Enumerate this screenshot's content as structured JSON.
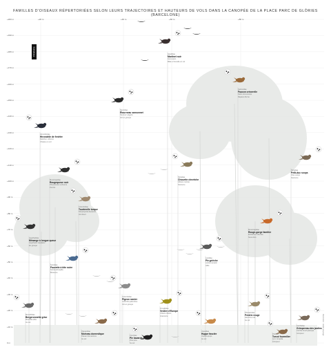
{
  "title": "FAMILLES D'OISEAUX RÉPERTORIÉES SELON LEURS TRAJECTOIRES ET HAUTEURS DE VOLS DANS LA CANOPÉE DE LA PLACE PARC DE GLÒRIES (BARCELONE)",
  "side_tag": "FRANCE",
  "altitude_ticks": [
    "+200 m",
    "+190 m",
    "+180 m",
    "+170 m",
    "+160 m",
    "+150 m",
    "+140 m",
    "+130 m",
    "+120 m",
    "+110 m",
    "+100 m",
    "+90 m",
    "+80 m",
    "+70 m",
    "+60 m",
    "+50 m",
    "+40 m",
    "+30 m",
    "+20 m",
    "+10 m",
    "0 m"
  ],
  "top_scale": [
    "+20 m",
    "+40 m",
    "+60 m",
    "+80 m"
  ],
  "birds": [
    {
      "id": "martinet",
      "family": "Apodidae",
      "name": "Martinet noir",
      "latin": "Apus apus",
      "note": "Mâle et femelle en vol"
    },
    {
      "id": "faucon",
      "family": "Falconidae",
      "name": "Faucon crécerelle",
      "latin": "Falco tinnunculus",
      "note": "Rapace diurne"
    },
    {
      "id": "etourneau",
      "family": "Sturnidae",
      "name": "Étourneau sansonnet",
      "latin": "Sturnus vulgaris",
      "note": "Vol en groupe"
    },
    {
      "id": "hirondelle",
      "family": "Hirundinidae",
      "name": "Hirondelle de fenêtre",
      "latin": "Delichon urbicum",
      "note": "Chasse en vol"
    },
    {
      "id": "hibou",
      "family": "Strigidae",
      "name": "Petit-duc scops",
      "latin": "Otus scops",
      "note": "Nocturne"
    },
    {
      "id": "chouette",
      "family": "Strigidae",
      "name": "Chouette chevêche",
      "latin": "Athene noctua",
      "note": "Nocturne"
    },
    {
      "id": "rouge-queue",
      "family": "Muscicapidae",
      "name": "Rougequeue noir",
      "latin": "Phoenicurus ochruros",
      "note": "Perché"
    },
    {
      "id": "tourterelle",
      "family": "Columbidae",
      "name": "Tourterelle turque",
      "latin": "Streptopelia decaocto",
      "note": "Vol direct"
    },
    {
      "id": "rouge-gorge",
      "family": "Muscicapidae",
      "name": "Rouge-gorge familier",
      "latin": "Erithacus rubecula",
      "note": "Sous-bois"
    },
    {
      "id": "mesange",
      "family": "Aegithalidae",
      "name": "Mésange à longue queue",
      "latin": "Aegithalos caudatus",
      "note": "En groupe"
    },
    {
      "id": "choucas",
      "family": "Laniidae",
      "name": "Pie-grièche",
      "latin": "Lanius senator",
      "note": "Affût"
    },
    {
      "id": "etourneau2",
      "family": "Corvidae",
      "name": "Pie bavarde",
      "latin": "Pica pica",
      "note": "Au sol"
    },
    {
      "id": "fauvette",
      "family": "Sylviidae",
      "name": "Fauvette à tête noire",
      "latin": "Sylvia atricapilla",
      "note": "Buissons"
    },
    {
      "id": "pigeon",
      "family": "Columbidae",
      "name": "Pigeon ramier",
      "latin": "Columba palumbus",
      "note": "Vol en groupe"
    },
    {
      "id": "verdier",
      "family": "Fringillidae",
      "name": "Verdier d'Europe",
      "latin": "Chloris chloris",
      "note": "Granivore"
    },
    {
      "id": "huppe",
      "family": "Upupidae",
      "name": "Huppe fasciée",
      "latin": "Upupa epops",
      "note": "Au sol"
    },
    {
      "id": "moineau",
      "family": "Passeridae",
      "name": "Moineau domestique",
      "latin": "Passer domesticus",
      "note": "Au sol"
    },
    {
      "id": "bergeronnette",
      "family": "Motacillidae",
      "name": "Bergeronnette grise",
      "latin": "Motacilla alba",
      "note": "Au sol"
    },
    {
      "id": "perdrix",
      "family": "Phasianidae",
      "name": "Perdrix rouge",
      "latin": "Alectoris rufa",
      "note": "Au sol"
    },
    {
      "id": "torcol",
      "family": "Picidae",
      "name": "Torcol fourmilier",
      "latin": "Jynx torquilla",
      "note": "Grimpeur"
    },
    {
      "id": "grimpereau",
      "family": "Certhiidae",
      "name": "Grimpereau des jardins",
      "latin": "Certhia brachydactyla",
      "note": "Grimpeur"
    }
  ],
  "credit": "Illustration : atelier paysage"
}
